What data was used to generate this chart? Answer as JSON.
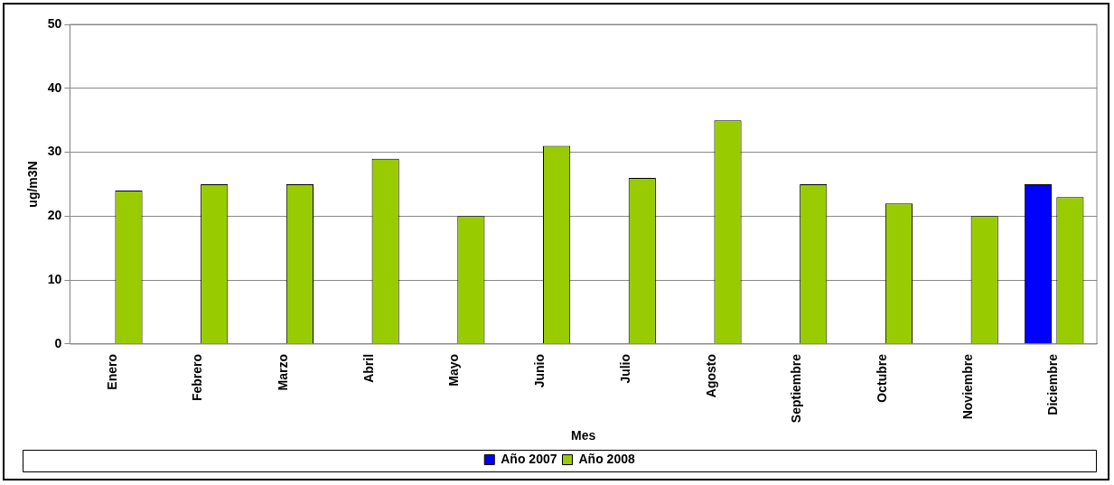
{
  "chart_data": {
    "type": "bar",
    "xlabel": "Mes",
    "ylabel": "ug/m3N",
    "categories": [
      "Enero",
      "Febrero",
      "Marzo",
      "Abril",
      "Mayo",
      "Junio",
      "Julio",
      "Agosto",
      "Septiembre",
      "Octubre",
      "Noviembre",
      "Diciembre"
    ],
    "series": [
      {
        "name": "Año 2007",
        "color": "#0000ff",
        "values": [
          null,
          null,
          null,
          null,
          null,
          null,
          null,
          null,
          null,
          null,
          null,
          25
        ]
      },
      {
        "name": "Año 2008",
        "color": "#99cc00",
        "values": [
          24,
          25,
          25,
          29,
          20,
          31,
          26,
          35,
          25,
          22,
          20,
          23
        ]
      }
    ],
    "ylim": [
      0,
      50
    ],
    "yticks": [
      0,
      10,
      20,
      30,
      40,
      50
    ],
    "grid": "y",
    "legend": "bottom"
  }
}
